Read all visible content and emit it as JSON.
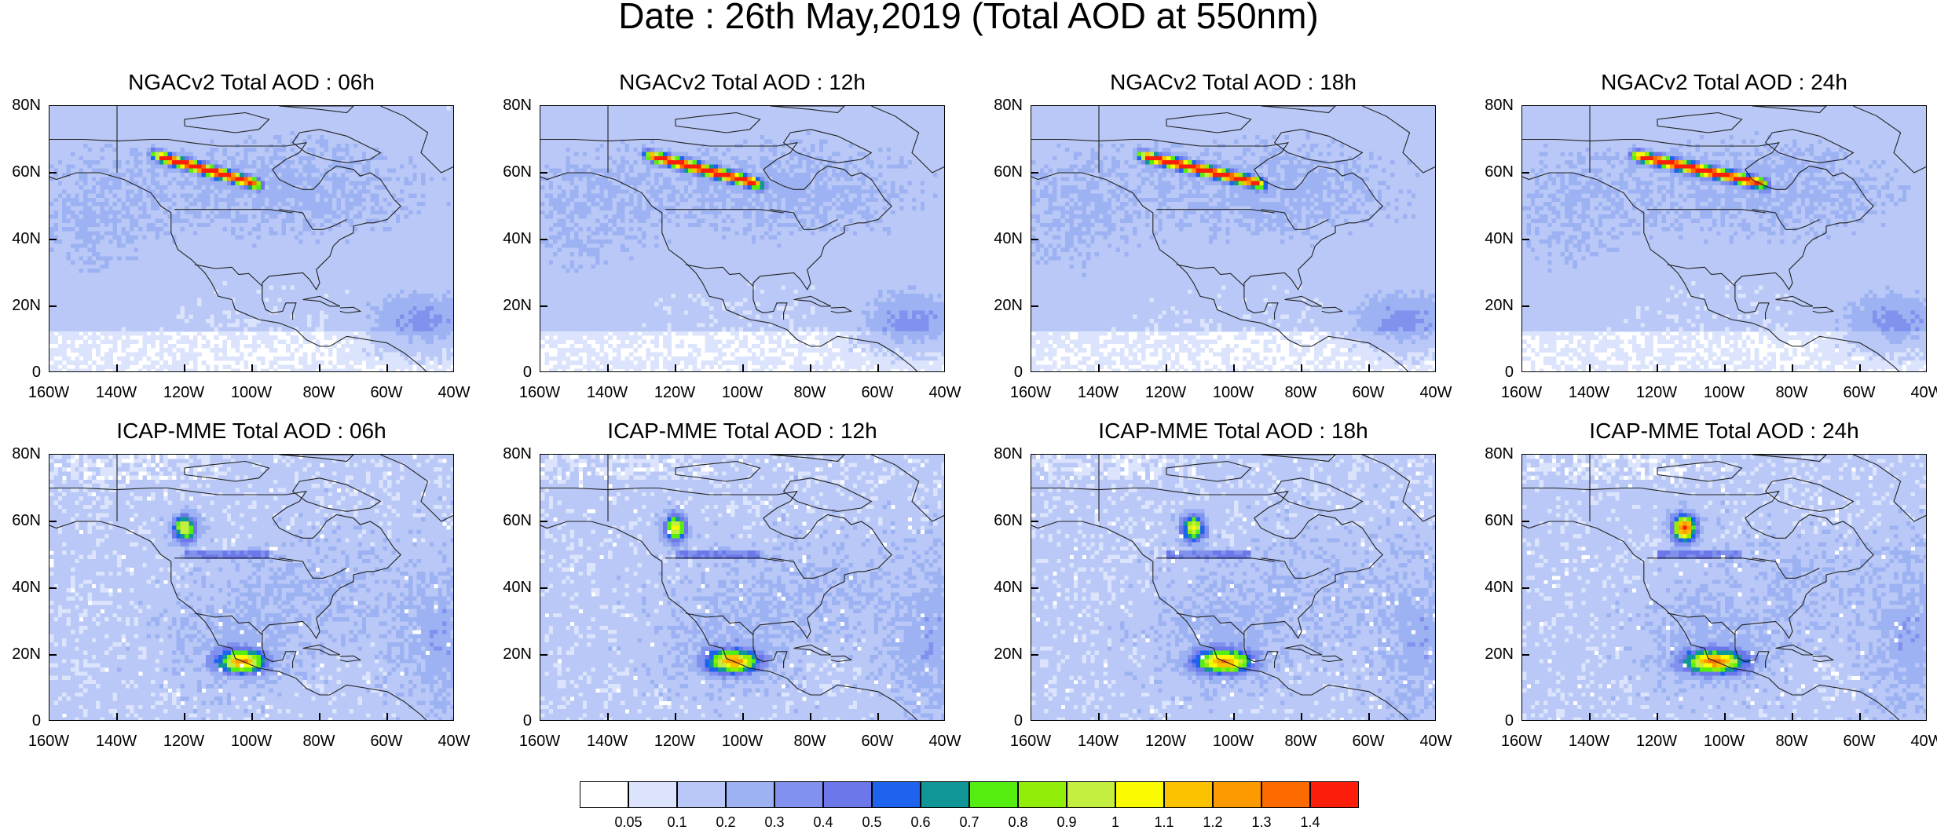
{
  "title": "Date : 26th May,2019 (Total AOD at 550nm)",
  "panels": [
    {
      "title": "NGACv2 Total AOD : 06h",
      "model": "ngac",
      "hour": 6
    },
    {
      "title": "NGACv2 Total AOD : 12h",
      "model": "ngac",
      "hour": 12
    },
    {
      "title": "NGACv2 Total AOD : 18h",
      "model": "ngac",
      "hour": 18
    },
    {
      "title": "NGACv2 Total AOD : 24h",
      "model": "ngac",
      "hour": 24
    },
    {
      "title": "ICAP-MME Total AOD : 06h",
      "model": "icap",
      "hour": 6
    },
    {
      "title": "ICAP-MME Total AOD : 12h",
      "model": "icap",
      "hour": 12
    },
    {
      "title": "ICAP-MME Total AOD : 18h",
      "model": "icap",
      "hour": 18
    },
    {
      "title": "ICAP-MME Total AOD : 24h",
      "model": "icap",
      "hour": 24
    }
  ],
  "axes": {
    "lon_range": [
      -160,
      -40
    ],
    "lat_range": [
      0,
      80
    ],
    "x_ticks": [
      "160W",
      "140W",
      "120W",
      "100W",
      "80W",
      "60W",
      "40W"
    ],
    "y_ticks": [
      "80N",
      "60N",
      "40N",
      "20N",
      "0"
    ]
  },
  "colorbar": {
    "labels": [
      "0.05",
      "0.1",
      "0.2",
      "0.3",
      "0.4",
      "0.5",
      "0.6",
      "0.7",
      "0.8",
      "0.9",
      "1",
      "1.1",
      "1.2",
      "1.3",
      "1.4"
    ],
    "colors": [
      "#ffffff",
      "#dbe4fc",
      "#b9c8f6",
      "#9db2f2",
      "#8092ee",
      "#6c78ea",
      "#1e63ee",
      "#109696",
      "#55ee10",
      "#90ee08",
      "#c4ee40",
      "#fafa00",
      "#fcc200",
      "#fc9a00",
      "#fc6a00",
      "#fc1e0a"
    ]
  }
}
